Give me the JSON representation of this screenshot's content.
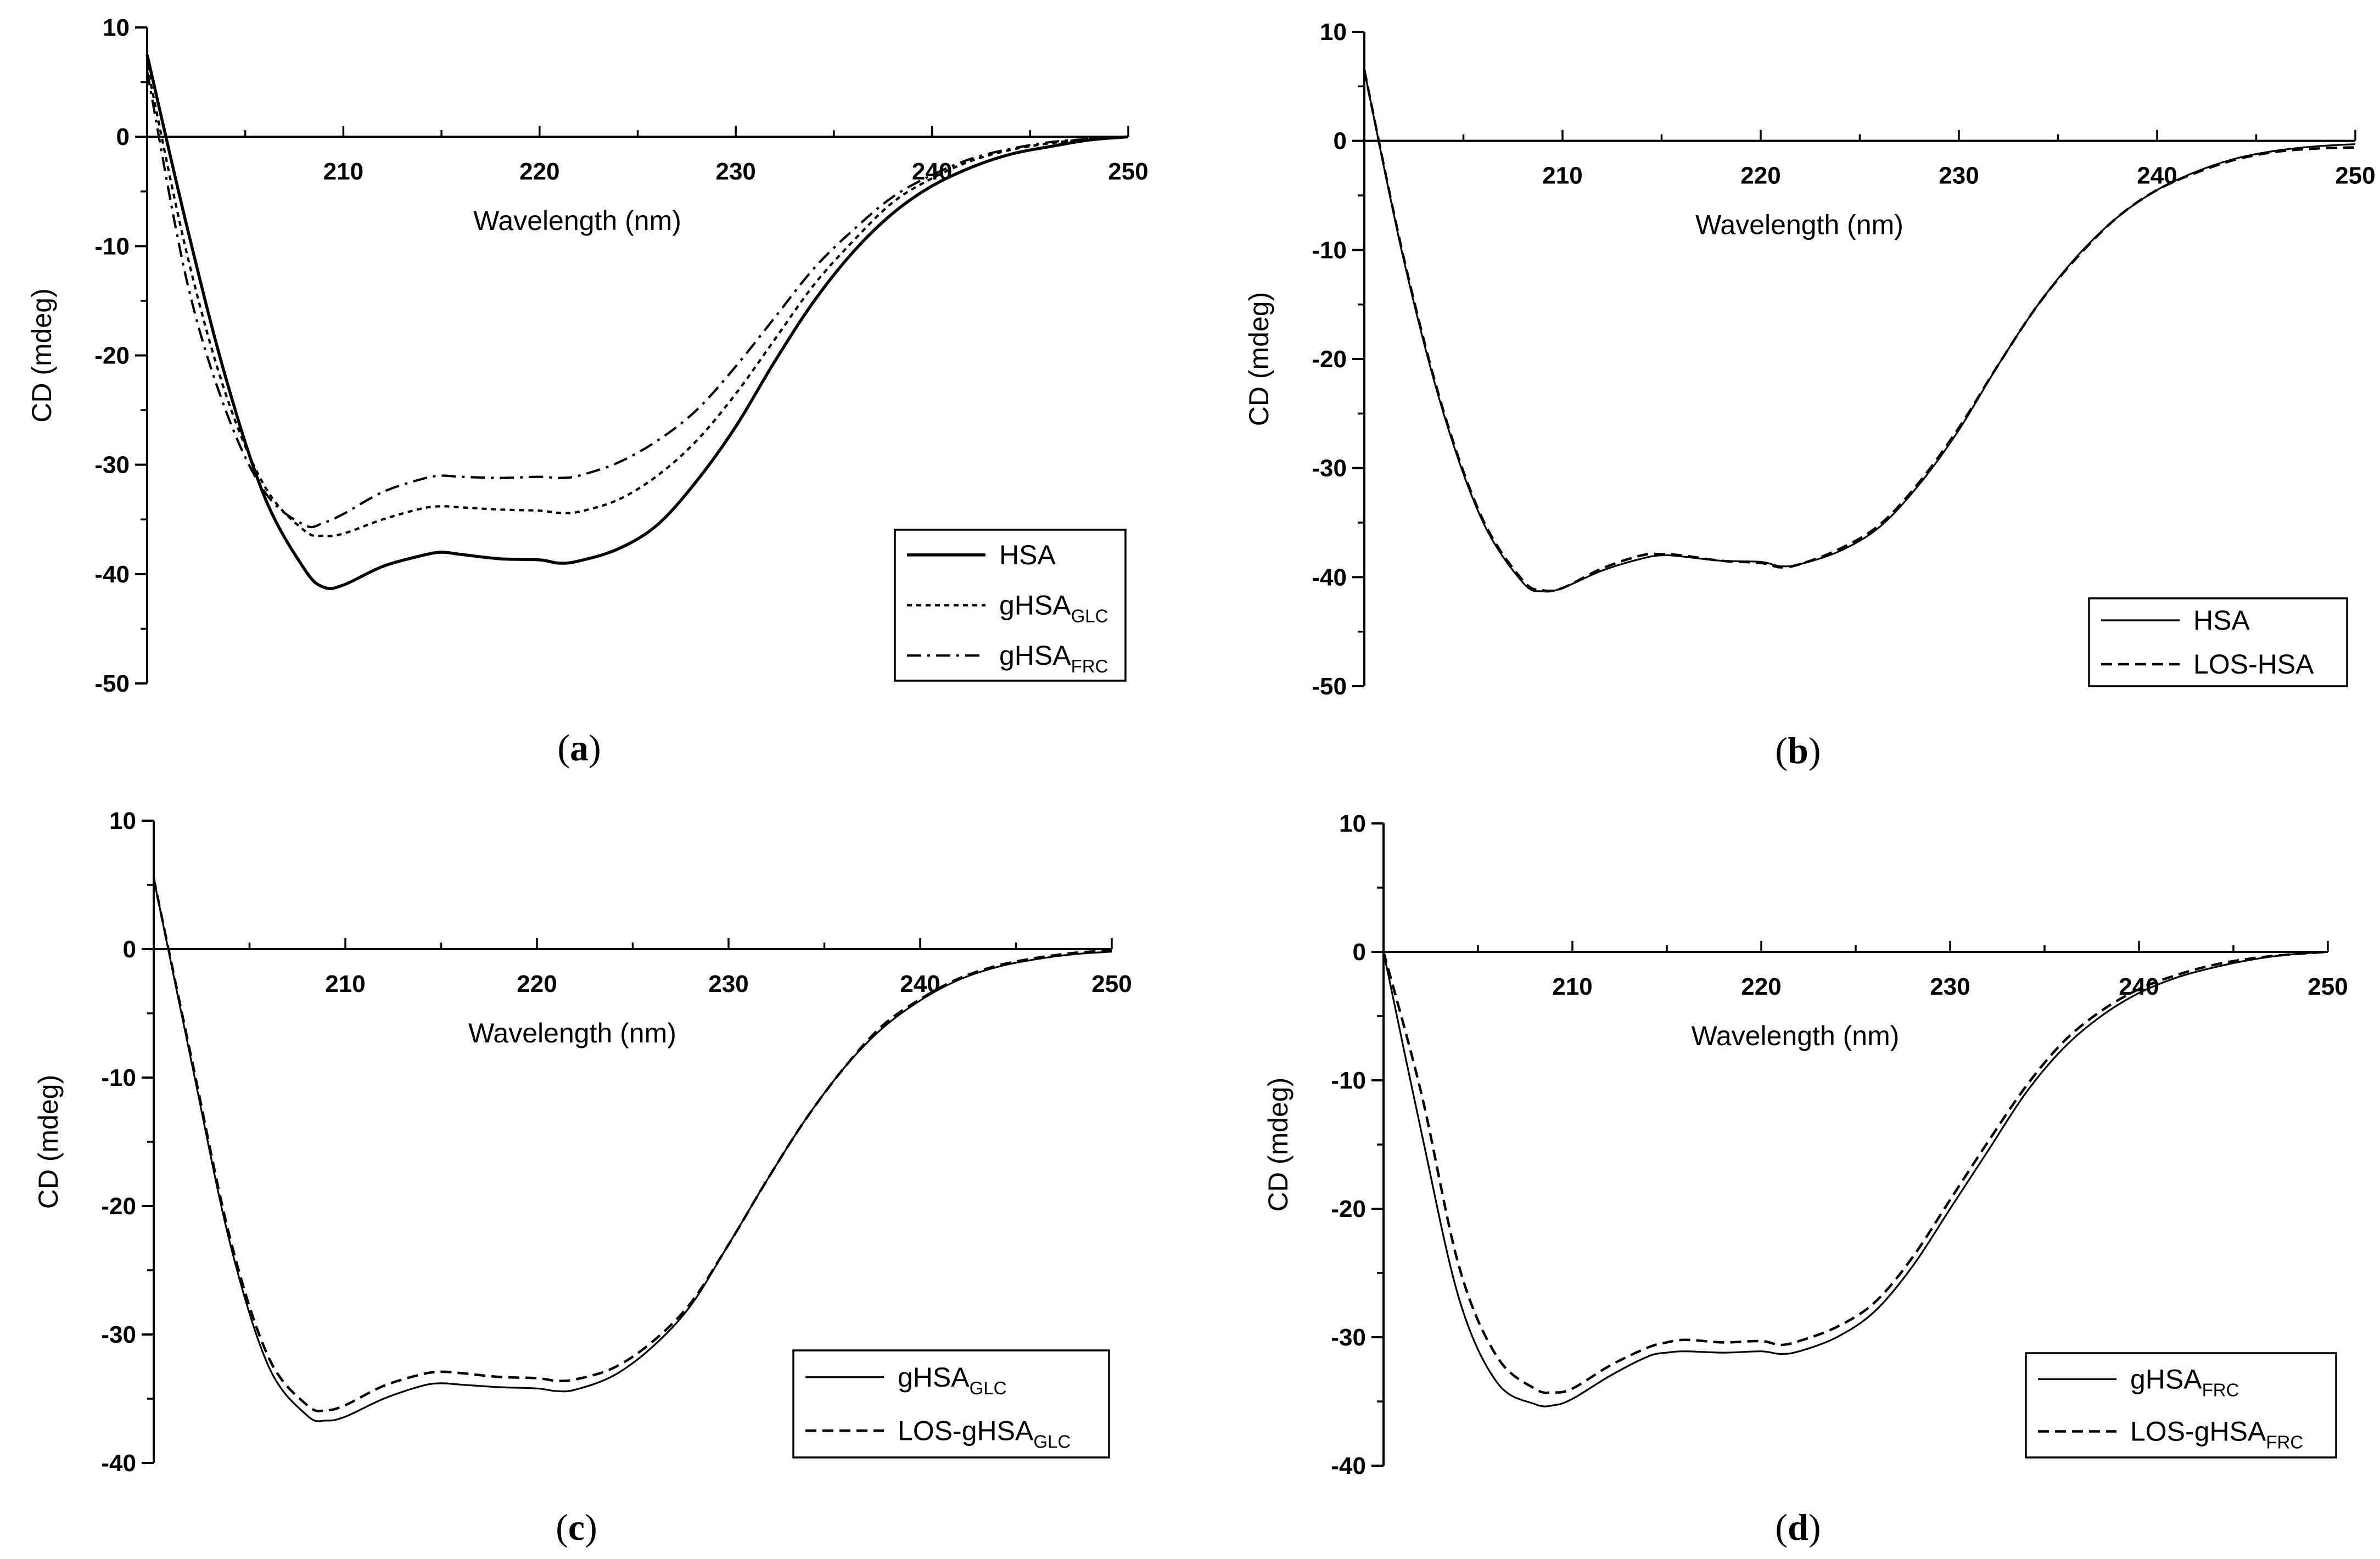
{
  "chart_data": [
    {
      "type": "line",
      "panel": "a",
      "caption": {
        "open": "(",
        "letter": "a",
        "close": ")"
      },
      "xlabel": "Wavelength (nm)",
      "ylabel": "CD (mdeg)",
      "xlim": [
        200,
        250
      ],
      "ylim": [
        -50,
        10
      ],
      "xticks": [
        "210",
        "220",
        "230",
        "240",
        "250"
      ],
      "yticks": [
        "10",
        "0",
        "-10",
        "-20",
        "-30",
        "-40",
        "-50"
      ],
      "legend_position": "bottom-right",
      "x": [
        200,
        202,
        204,
        206,
        208,
        209,
        210,
        212,
        214,
        215,
        216,
        218,
        220,
        221,
        222,
        224,
        226,
        228,
        230,
        232,
        234,
        236,
        238,
        240,
        242,
        244,
        246,
        248,
        250
      ],
      "series": [
        {
          "name": "HSA",
          "sub": "",
          "style": "solid-thick",
          "values": [
            7.5,
            -8,
            -22,
            -33,
            -39.5,
            -41.2,
            -41.0,
            -39.3,
            -38.3,
            -38.0,
            -38.2,
            -38.6,
            -38.7,
            -39.0,
            -38.8,
            -37.7,
            -35.5,
            -31.5,
            -26.5,
            -20.5,
            -15.0,
            -10.5,
            -7.0,
            -4.5,
            -2.8,
            -1.6,
            -0.9,
            -0.3,
            0
          ]
        },
        {
          "name": "gHSA",
          "sub": "GLC",
          "style": "dotted",
          "values": [
            6.5,
            -10.5,
            -23.5,
            -32,
            -36,
            -36.5,
            -36.3,
            -35.0,
            -34.0,
            -33.8,
            -33.9,
            -34.1,
            -34.2,
            -34.4,
            -34.3,
            -33.2,
            -31.0,
            -27.8,
            -23.5,
            -18.5,
            -13.5,
            -9.5,
            -6.0,
            -3.8,
            -2.2,
            -1.2,
            -0.6,
            -0.2,
            0
          ]
        },
        {
          "name": "gHSA",
          "sub": "FRC",
          "style": "dash-dot",
          "values": [
            6.0,
            -13,
            -25,
            -32.5,
            -35.5,
            -35.3,
            -34.5,
            -32.5,
            -31.3,
            -31.0,
            -31.1,
            -31.2,
            -31.1,
            -31.2,
            -31.0,
            -29.8,
            -27.8,
            -25.0,
            -21.0,
            -16.5,
            -12.0,
            -8.5,
            -5.5,
            -3.5,
            -2.0,
            -1.1,
            -0.5,
            -0.2,
            0
          ]
        }
      ]
    },
    {
      "type": "line",
      "panel": "b",
      "caption": {
        "open": "(",
        "letter": "b",
        "close": ")"
      },
      "xlabel": "Wavelength (nm)",
      "ylabel": "CD (mdeg)",
      "xlim": [
        200,
        250
      ],
      "ylim": [
        -50,
        10
      ],
      "xticks": [
        "210",
        "220",
        "230",
        "240",
        "250"
      ],
      "yticks": [
        "10",
        "0",
        "-10",
        "-20",
        "-30",
        "-40",
        "-50"
      ],
      "legend_position": "bottom-right",
      "x": [
        200,
        202,
        204,
        206,
        208,
        209,
        210,
        212,
        214,
        215,
        216,
        218,
        220,
        221,
        222,
        224,
        226,
        228,
        230,
        232,
        234,
        236,
        238,
        240,
        242,
        244,
        246,
        248,
        250
      ],
      "series": [
        {
          "name": "HSA",
          "sub": "",
          "style": "solid-thin",
          "values": [
            6.5,
            -11,
            -25,
            -35,
            -40.5,
            -41.3,
            -41.0,
            -39.4,
            -38.3,
            -38.0,
            -38.1,
            -38.5,
            -38.6,
            -39.0,
            -38.8,
            -37.6,
            -35.4,
            -31.5,
            -26.5,
            -20.5,
            -15.0,
            -10.5,
            -7.0,
            -4.5,
            -2.8,
            -1.6,
            -0.9,
            -0.5,
            -0.3
          ]
        },
        {
          "name": "LOS-HSA",
          "sub": "",
          "style": "dashed",
          "values": [
            6.5,
            -10.8,
            -24.8,
            -34.8,
            -40.3,
            -41.2,
            -41.0,
            -39.2,
            -38.0,
            -37.9,
            -38.0,
            -38.5,
            -38.7,
            -39.1,
            -38.8,
            -37.4,
            -35.2,
            -31.3,
            -26.3,
            -20.5,
            -15.0,
            -10.6,
            -7.0,
            -4.5,
            -2.9,
            -1.7,
            -1.0,
            -0.7,
            -0.6
          ]
        }
      ]
    },
    {
      "type": "line",
      "panel": "c",
      "caption": {
        "open": "(",
        "letter": "c",
        "close": ")"
      },
      "xlabel": "Wavelength (nm)",
      "ylabel": "CD (mdeg)",
      "xlim": [
        200,
        250
      ],
      "ylim": [
        -40,
        10
      ],
      "xticks": [
        "210",
        "220",
        "230",
        "240",
        "250"
      ],
      "yticks": [
        "10",
        "0",
        "-10",
        "-20",
        "-30",
        "-40"
      ],
      "legend_position": "bottom-right",
      "x": [
        200,
        202,
        204,
        206,
        208,
        209,
        210,
        212,
        214,
        215,
        216,
        218,
        220,
        221,
        222,
        224,
        226,
        228,
        230,
        232,
        234,
        236,
        238,
        240,
        242,
        244,
        246,
        248,
        250
      ],
      "series": [
        {
          "name": "gHSA",
          "sub": "GLC",
          "style": "solid-thin",
          "values": [
            5.5,
            -9,
            -23,
            -32.5,
            -36.3,
            -36.7,
            -36.4,
            -35.0,
            -34.0,
            -33.8,
            -33.9,
            -34.1,
            -34.2,
            -34.4,
            -34.3,
            -33.2,
            -31.0,
            -27.8,
            -23.0,
            -18.0,
            -13.3,
            -9.3,
            -6.2,
            -4.0,
            -2.4,
            -1.4,
            -0.8,
            -0.4,
            -0.2
          ]
        },
        {
          "name": "LOS-gHSA",
          "sub": "GLC",
          "style": "dashed",
          "values": [
            5.5,
            -8.7,
            -22.6,
            -31.8,
            -35.5,
            -35.9,
            -35.5,
            -34.0,
            -33.1,
            -32.9,
            -33.0,
            -33.3,
            -33.4,
            -33.6,
            -33.5,
            -32.6,
            -30.6,
            -27.6,
            -23.0,
            -18.0,
            -13.3,
            -9.3,
            -6.0,
            -3.9,
            -2.3,
            -1.3,
            -0.7,
            -0.3,
            -0.1
          ]
        }
      ]
    },
    {
      "type": "line",
      "panel": "d",
      "caption": {
        "open": "(",
        "letter": "d",
        "close": ")"
      },
      "xlabel": "Wavelength (nm)",
      "ylabel": "CD (mdeg)",
      "xlim": [
        200,
        250
      ],
      "ylim": [
        -40,
        10
      ],
      "xticks": [
        "210",
        "220",
        "230",
        "240",
        "250"
      ],
      "yticks": [
        "10",
        "0",
        "-10",
        "-20",
        "-30",
        "-40"
      ],
      "legend_position": "bottom-right",
      "x": [
        200,
        202,
        204,
        206,
        208,
        209,
        210,
        212,
        214,
        215,
        216,
        218,
        220,
        221,
        222,
        224,
        226,
        228,
        230,
        232,
        234,
        236,
        238,
        240,
        242,
        244,
        246,
        248,
        250
      ],
      "series": [
        {
          "name": "gHSA",
          "sub": "FRC",
          "style": "solid-thin",
          "values": [
            0,
            -14,
            -27,
            -33.5,
            -35.2,
            -35.3,
            -34.8,
            -33.0,
            -31.5,
            -31.2,
            -31.1,
            -31.2,
            -31.1,
            -31.3,
            -31.1,
            -30.0,
            -28.0,
            -24.5,
            -20.0,
            -15.5,
            -11.0,
            -7.5,
            -5.0,
            -3.2,
            -2.0,
            -1.2,
            -0.6,
            -0.2,
            0
          ]
        },
        {
          "name": "LOS-gHSA",
          "sub": "FRC",
          "style": "dashed",
          "values": [
            0,
            -11,
            -24.5,
            -31.5,
            -34.0,
            -34.3,
            -34.0,
            -32.2,
            -30.8,
            -30.4,
            -30.2,
            -30.4,
            -30.3,
            -30.6,
            -30.3,
            -29.2,
            -27.3,
            -23.8,
            -19.3,
            -14.8,
            -10.5,
            -7.0,
            -4.6,
            -2.9,
            -1.8,
            -1.0,
            -0.5,
            -0.2,
            0
          ]
        }
      ]
    }
  ]
}
